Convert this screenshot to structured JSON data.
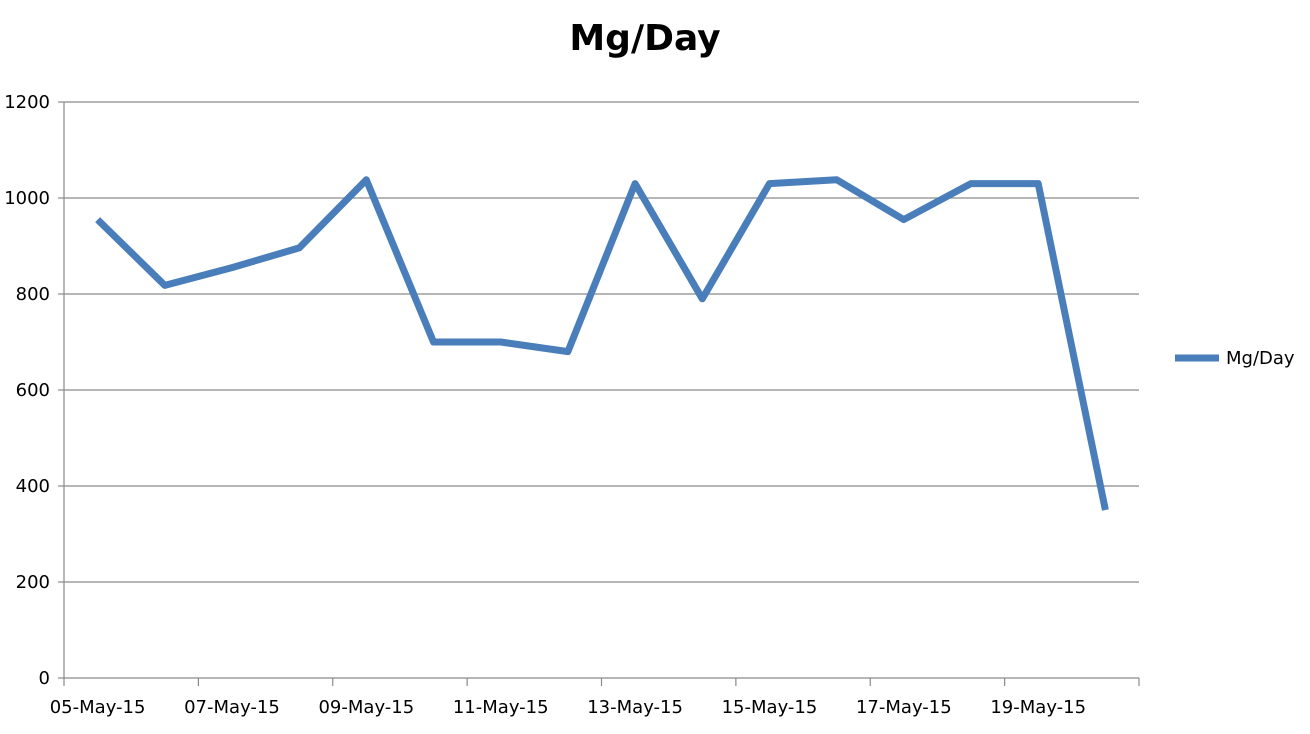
{
  "chart_data": {
    "type": "line",
    "title": "Mg/Day",
    "xlabel": "",
    "ylabel": "",
    "ylim": [
      0,
      1200
    ],
    "y_ticks": [
      0,
      200,
      400,
      600,
      800,
      1000,
      1200
    ],
    "x_tick_labels": [
      "05-May-15",
      "07-May-15",
      "09-May-15",
      "11-May-15",
      "13-May-15",
      "15-May-15",
      "17-May-15",
      "19-May-15"
    ],
    "grid": true,
    "legend_position": "right",
    "x": [
      "05-May-15",
      "06-May-15",
      "07-May-15",
      "08-May-15",
      "09-May-15",
      "10-May-15",
      "11-May-15",
      "12-May-15",
      "13-May-15",
      "14-May-15",
      "15-May-15",
      "16-May-15",
      "17-May-15",
      "18-May-15",
      "19-May-15",
      "20-May-15"
    ],
    "series": [
      {
        "name": "Mg/Day",
        "color": "#4a7ebb",
        "values": [
          955,
          818,
          855,
          896,
          1038,
          700,
          700,
          680,
          1030,
          790,
          1030,
          1038,
          955,
          1030,
          1030,
          350
        ]
      }
    ]
  }
}
